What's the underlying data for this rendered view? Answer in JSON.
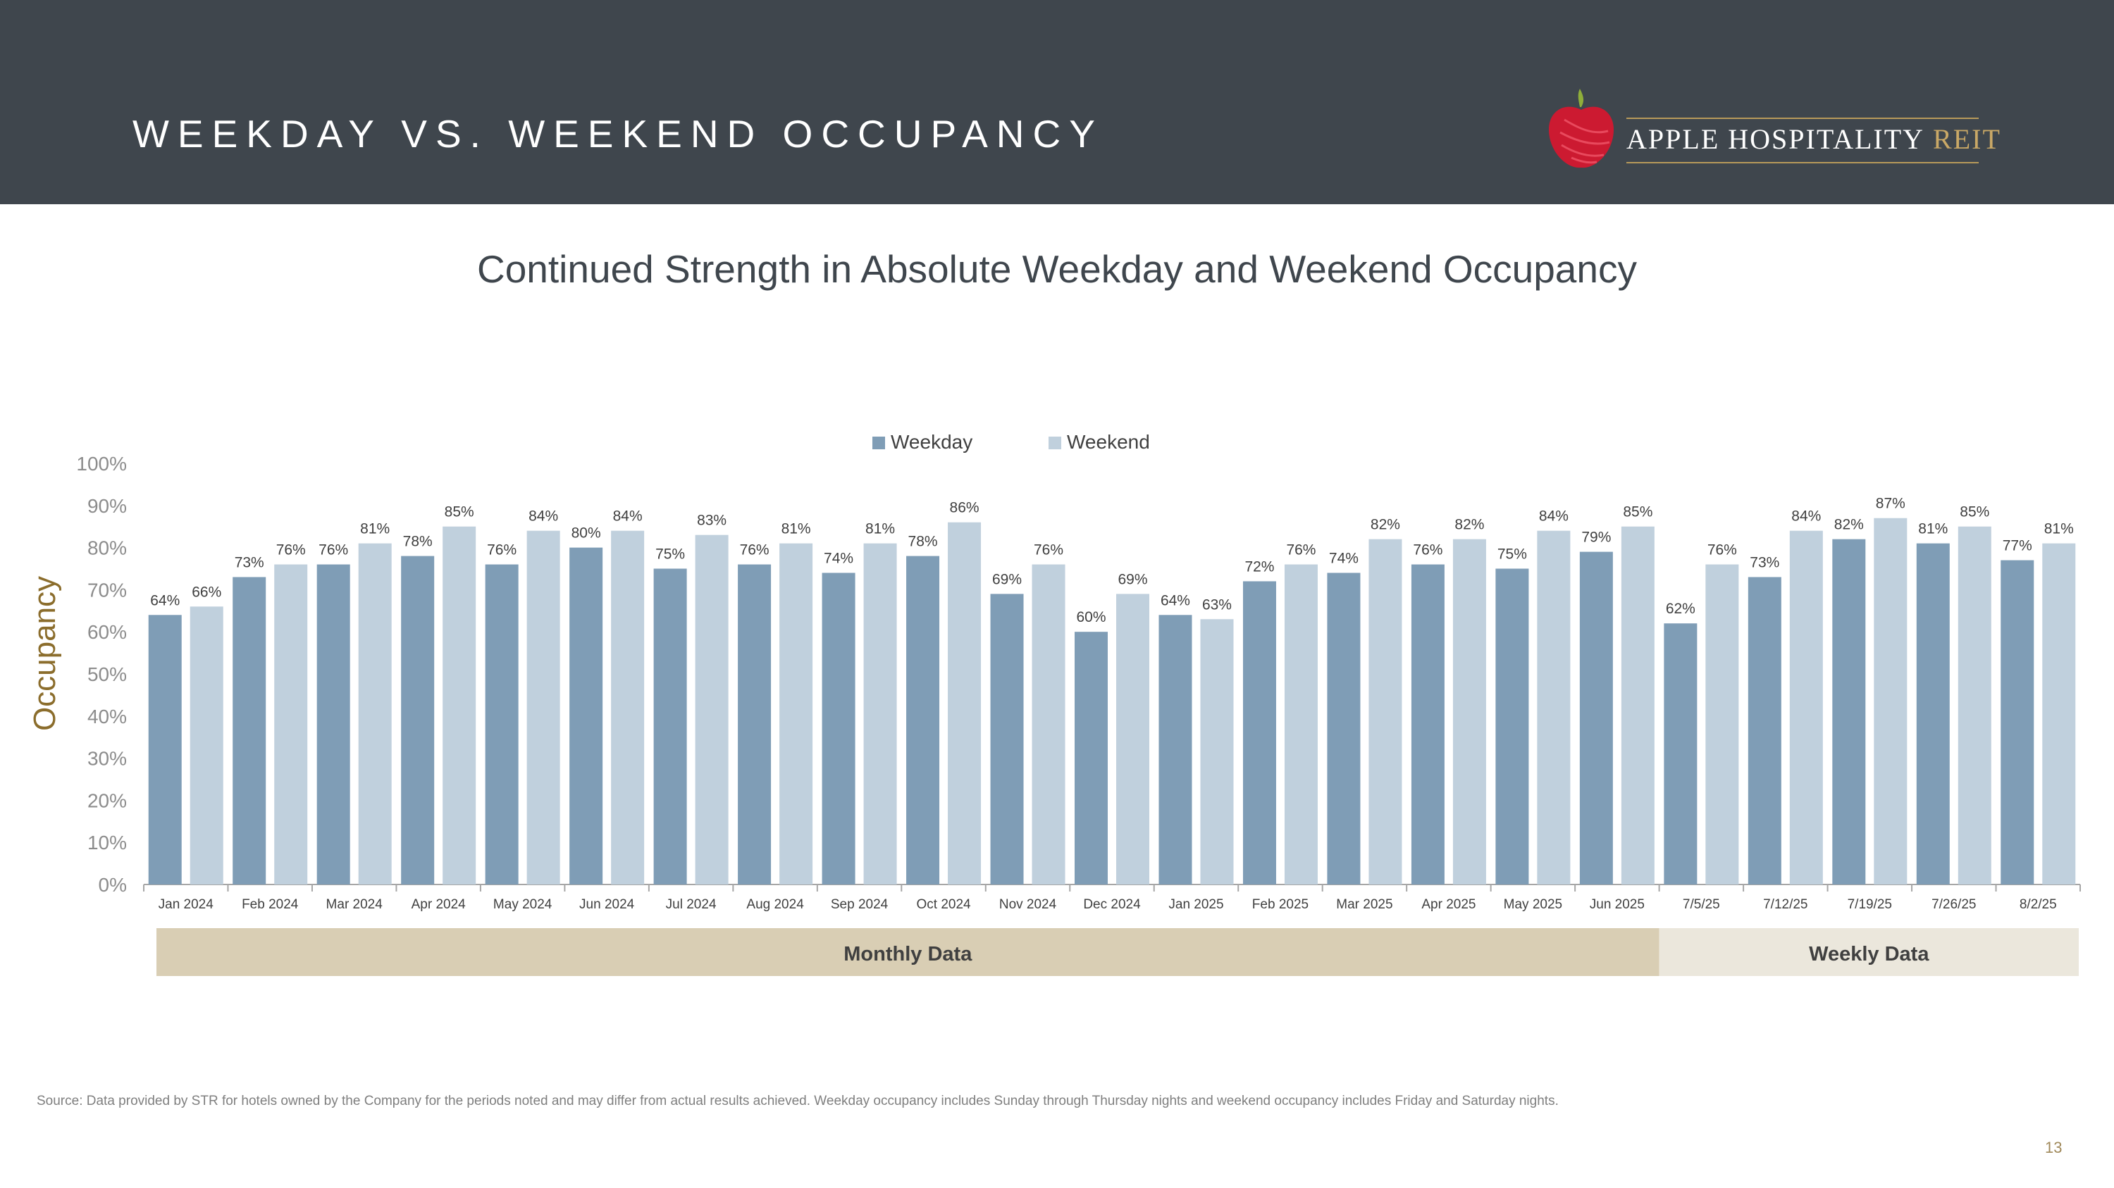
{
  "header": {
    "title": "WEEKDAY VS. WEEKEND OCCUPANCY"
  },
  "logo": {
    "name": "APPLE HOSPITALITY",
    "suffix": "REIT"
  },
  "subtitle": "Continued Strength in Absolute Weekday and Weekend Occupancy",
  "colors": {
    "header_bg": "#3f464d",
    "weekday": "#7f9db6",
    "weekend": "#c0d0dd",
    "monthly_band": "#d9ceb4",
    "weekly_band": "#ebe7dc",
    "accent_gold": "#8b6d2c"
  },
  "chart_data": {
    "type": "bar",
    "title": "Continued Strength in Absolute Weekday and Weekend Occupancy",
    "ylabel": "Occupancy",
    "xlabel": "",
    "ylim": [
      0,
      100
    ],
    "yticks": [
      "0%",
      "10%",
      "20%",
      "30%",
      "40%",
      "50%",
      "60%",
      "70%",
      "80%",
      "90%",
      "100%"
    ],
    "legend": [
      "Weekday",
      "Weekend"
    ],
    "legend_position": "top-center",
    "categories": [
      "Jan 2024",
      "Feb 2024",
      "Mar 2024",
      "Apr 2024",
      "May 2024",
      "Jun 2024",
      "Jul 2024",
      "Aug 2024",
      "Sep 2024",
      "Oct 2024",
      "Nov 2024",
      "Dec 2024",
      "Jan 2025",
      "Feb 2025",
      "Mar 2025",
      "Apr 2025",
      "May 2025",
      "Jun 2025",
      "7/5/25",
      "7/12/25",
      "7/19/25",
      "7/26/25",
      "8/2/25"
    ],
    "series": [
      {
        "name": "Weekday",
        "values": [
          64,
          73,
          76,
          78,
          76,
          80,
          75,
          76,
          74,
          78,
          69,
          60,
          64,
          72,
          74,
          76,
          75,
          79,
          62,
          73,
          82,
          81,
          77
        ]
      },
      {
        "name": "Weekend",
        "values": [
          66,
          76,
          81,
          85,
          84,
          84,
          83,
          81,
          81,
          86,
          76,
          69,
          63,
          76,
          82,
          82,
          84,
          85,
          76,
          84,
          87,
          85,
          81
        ]
      }
    ],
    "groups": [
      {
        "label": "Monthly Data",
        "count": 18
      },
      {
        "label": "Weekly Data",
        "count": 5
      }
    ]
  },
  "footer": {
    "source": "Source:  Data provided by STR for hotels owned by the Company for the periods noted and may differ from actual results achieved. Weekday occupancy includes Sunday through Thursday nights and weekend occupancy includes Friday and Saturday nights.",
    "page_number": "13"
  }
}
